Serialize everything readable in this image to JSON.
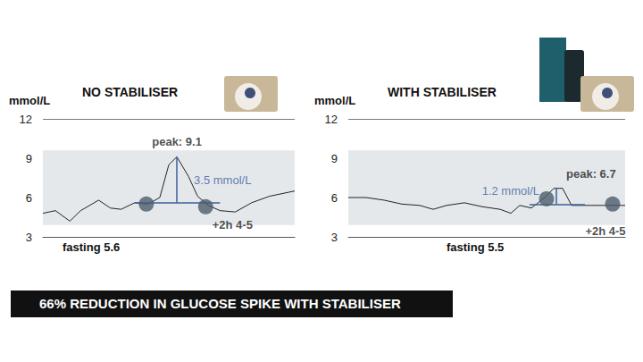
{
  "chart_data": [
    {
      "type": "line",
      "title": "NO STABILISER",
      "ylabel": "mmol/L",
      "color": "#222222",
      "x": [
        0,
        1.4,
        3,
        4.2,
        6.2,
        7.5,
        8.7,
        10.2,
        11.7,
        13,
        14,
        14.9,
        16.2,
        17.2,
        18.4,
        19.7,
        21.4,
        23.2,
        25.2,
        28
      ],
      "values": [
        4.8,
        5.0,
        4.2,
        5.0,
        5.8,
        5.2,
        5.1,
        5.6,
        5.5,
        6.0,
        8.5,
        9.1,
        7.6,
        6.1,
        5.4,
        5.0,
        4.9,
        5.6,
        6.1,
        6.5
      ],
      "xlim": [
        0,
        28
      ],
      "ylim": [
        3,
        12
      ],
      "yticks": [
        3,
        6,
        9,
        12
      ],
      "grid": true,
      "tick_labels": "y",
      "band": [
        3.9,
        9.6
      ],
      "peak": {
        "label": "peak: 9.1",
        "x": 14.9,
        "value": 9.1
      },
      "fasting": {
        "label": "fasting 5.6",
        "value": 5.6
      },
      "spike": {
        "label": "3.5 mmol/L",
        "value": 3.5,
        "x": 14.9,
        "xrange": [
          10.2,
          19.7
        ]
      },
      "markers": [
        {
          "x": 11.5,
          "value": 5.5
        },
        {
          "x": 18.1,
          "value": 5.3,
          "label": "+2h 4-5"
        }
      ]
    },
    {
      "type": "line",
      "title": "WITH STABILISER",
      "ylabel": "mmol/L",
      "color": "#222222",
      "x": [
        0,
        2,
        4,
        6,
        8,
        9.5,
        11,
        13,
        15,
        17,
        18.2,
        19.2,
        20.5,
        22,
        23,
        24,
        25,
        27,
        31
      ],
      "values": [
        6.0,
        6.0,
        5.8,
        5.5,
        5.4,
        5.1,
        5.4,
        5.6,
        5.3,
        5.1,
        4.8,
        5.4,
        5.2,
        6.0,
        6.7,
        6.7,
        5.4,
        5.4,
        5.4
      ],
      "xlim": [
        0,
        31
      ],
      "ylim": [
        3,
        12
      ],
      "yticks": [
        3,
        6,
        9,
        12
      ],
      "grid": true,
      "tick_labels": "y",
      "band": [
        3.9,
        9.6
      ],
      "peak": {
        "label": "peak: 6.7",
        "x": 23.5,
        "value": 6.7
      },
      "fasting": {
        "label": "fasting 5.5",
        "value": 5.5
      },
      "spike": {
        "label": "1.2 mmol/L",
        "value": 1.2,
        "x": 23.3,
        "xrange": [
          20.3,
          26.5
        ]
      },
      "markers": [
        {
          "x": 22.2,
          "value": 5.9
        },
        {
          "x": 29.6,
          "value": 5.5,
          "label": "+2h 4-5"
        }
      ]
    }
  ],
  "banner": "66% REDUCTION IN GLUCOSE SPIKE WITH STABILISER"
}
